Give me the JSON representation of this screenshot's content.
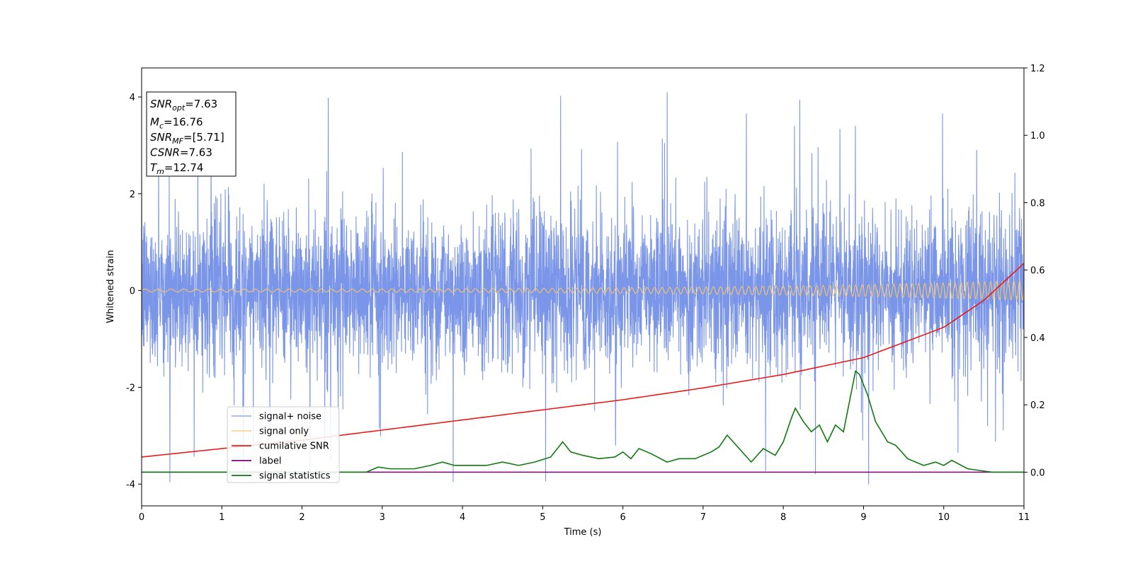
{
  "chart_data": {
    "type": "line",
    "title": "",
    "xlabel": "Time (s)",
    "ylabel": "Whitened strain",
    "ylabel_right": "",
    "xlim": [
      0,
      11
    ],
    "ylim": [
      -4.45,
      4.6
    ],
    "ylim_right": [
      -0.1,
      1.2
    ],
    "xticks": [
      0,
      1,
      2,
      3,
      4,
      5,
      6,
      7,
      8,
      9,
      10,
      11
    ],
    "yticks": [
      -4,
      -2,
      0,
      2,
      4
    ],
    "yticks_right": [
      "0.0",
      "0.2",
      "0.4",
      "0.6",
      "0.8",
      "1.0",
      "1.2"
    ],
    "grid": false,
    "legend_placement": "lower-left",
    "annotation": {
      "lines": [
        {
          "main": "SNR",
          "sub": "opt",
          "value": "=7.63"
        },
        {
          "main": "M",
          "sub": "c",
          "value": "=16.76"
        },
        {
          "main": "SNR",
          "sub": "MF",
          "value": "=[5.71]"
        },
        {
          "main": "CSNR",
          "sub": "",
          "value": "=7.63"
        },
        {
          "main": "T",
          "sub": "m",
          "value": "=12.74"
        }
      ]
    },
    "series": [
      {
        "name": "signal+ noise",
        "axis": "left",
        "color": "#7b96e8",
        "kind": "noise",
        "x_range": [
          0,
          11
        ],
        "spread": 1.8,
        "peak_min": -4.02,
        "peak_max": 4.18
      },
      {
        "name": "signal only",
        "axis": "left",
        "color": "#f5c46a",
        "kind": "chirp",
        "x_range": [
          0,
          11
        ],
        "amp_start": 0.03,
        "amp_end": 0.2,
        "freq_start_hz": 6,
        "freq_end_hz": 14
      },
      {
        "name": "cumilative SNR",
        "axis": "right",
        "color": "#e81b1b",
        "x": [
          0,
          1,
          2,
          3,
          4,
          5,
          6,
          7,
          8,
          9,
          10,
          10.5,
          11
        ],
        "y": [
          0.045,
          0.07,
          0.095,
          0.125,
          0.155,
          0.185,
          0.215,
          0.25,
          0.29,
          0.34,
          0.43,
          0.51,
          0.62
        ]
      },
      {
        "name": "label",
        "axis": "right",
        "color": "#800080",
        "x": [
          0,
          11
        ],
        "y": [
          0.0,
          0.0
        ]
      },
      {
        "name": "signal statistics",
        "axis": "right",
        "color": "#0f7a0f",
        "x": [
          0,
          0.5,
          1,
          1.5,
          2,
          2.5,
          2.8,
          2.95,
          3.1,
          3.4,
          3.6,
          3.75,
          3.9,
          4.1,
          4.3,
          4.5,
          4.7,
          4.9,
          5.1,
          5.25,
          5.35,
          5.5,
          5.7,
          5.9,
          6.0,
          6.1,
          6.2,
          6.35,
          6.55,
          6.7,
          6.9,
          7.1,
          7.2,
          7.3,
          7.45,
          7.6,
          7.75,
          7.9,
          8.0,
          8.1,
          8.15,
          8.25,
          8.35,
          8.45,
          8.55,
          8.65,
          8.75,
          8.85,
          8.9,
          8.95,
          9.05,
          9.15,
          9.3,
          9.4,
          9.55,
          9.75,
          9.9,
          10.0,
          10.1,
          10.3,
          10.6,
          11.0
        ],
        "y": [
          0.0,
          0.0,
          0.0,
          0.0,
          0.0,
          0.0,
          0.0,
          0.015,
          0.01,
          0.01,
          0.02,
          0.03,
          0.02,
          0.02,
          0.02,
          0.03,
          0.02,
          0.03,
          0.045,
          0.09,
          0.06,
          0.05,
          0.04,
          0.045,
          0.06,
          0.04,
          0.07,
          0.055,
          0.03,
          0.04,
          0.04,
          0.06,
          0.075,
          0.11,
          0.07,
          0.03,
          0.07,
          0.05,
          0.09,
          0.16,
          0.19,
          0.15,
          0.12,
          0.14,
          0.09,
          0.14,
          0.12,
          0.24,
          0.3,
          0.29,
          0.23,
          0.15,
          0.09,
          0.08,
          0.04,
          0.02,
          0.03,
          0.02,
          0.035,
          0.01,
          0.0,
          0.0
        ]
      }
    ]
  }
}
